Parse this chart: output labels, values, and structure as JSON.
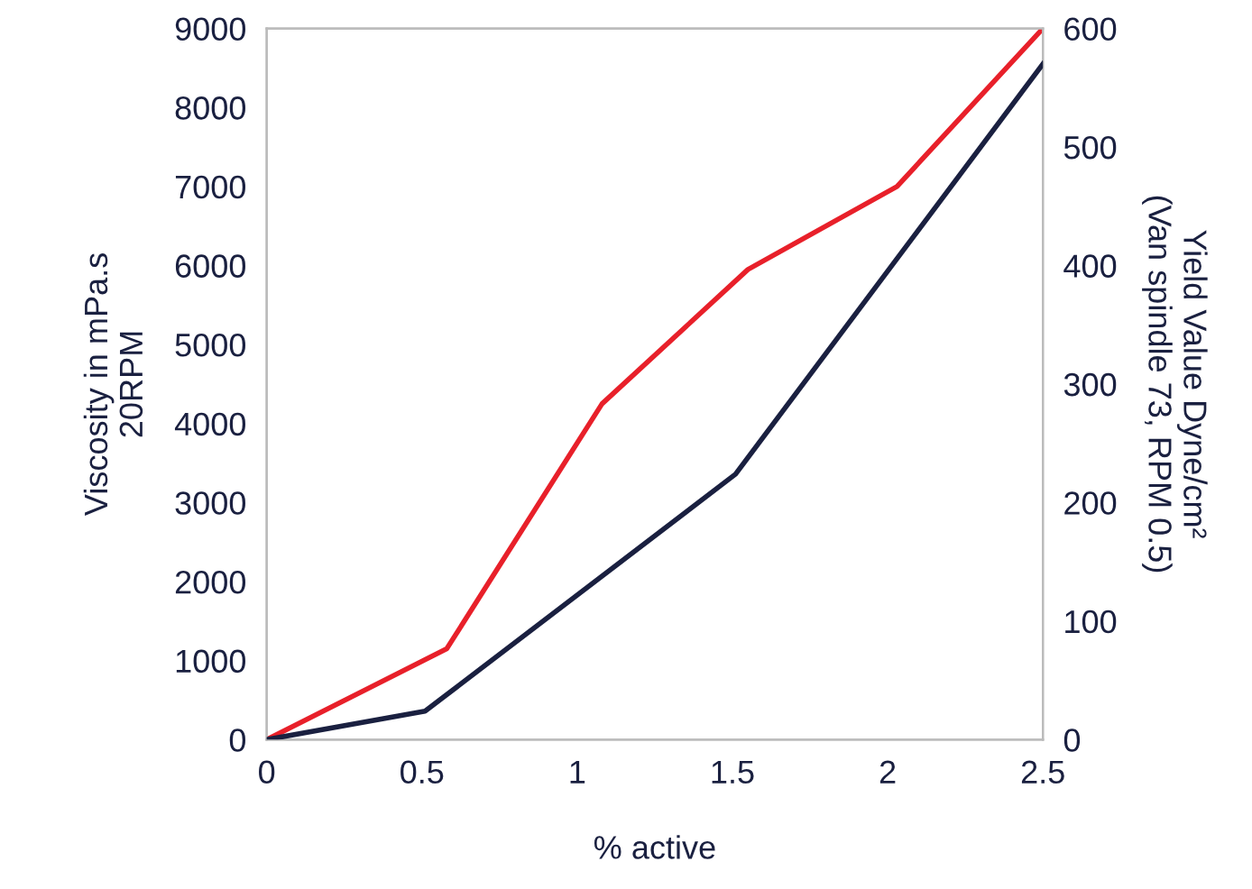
{
  "chart_data": {
    "type": "line",
    "xlabel": "% active",
    "ylabel": "Viscosity in mPa.s\n20RPM",
    "y2label": "Yield Value Dyne/cm²\n(Van spindle 73, RPM 0.5)",
    "xlim": [
      0,
      2.5
    ],
    "xticks": [
      0,
      0.5,
      1,
      1.5,
      2,
      2.5
    ],
    "ylim": [
      0,
      9000
    ],
    "yticks": [
      0,
      1000,
      2000,
      3000,
      4000,
      5000,
      6000,
      7000,
      8000,
      9000
    ],
    "y2lim": [
      0,
      600
    ],
    "y2ticks": [
      0,
      100,
      200,
      300,
      400,
      500,
      600
    ],
    "grid": false,
    "legend": false,
    "series": [
      {
        "color": "#e8202a",
        "x": [
          0,
          0.58,
          1.08,
          1.55,
          2.03,
          2.5
        ],
        "values": [
          0,
          1150,
          4250,
          5950,
          7000,
          9000
        ]
      },
      {
        "color": "#1a2040",
        "axis": "y2",
        "x": [
          0,
          0.51,
          1.51,
          2.5
        ],
        "values": [
          0,
          24,
          224,
          570
        ]
      }
    ]
  }
}
